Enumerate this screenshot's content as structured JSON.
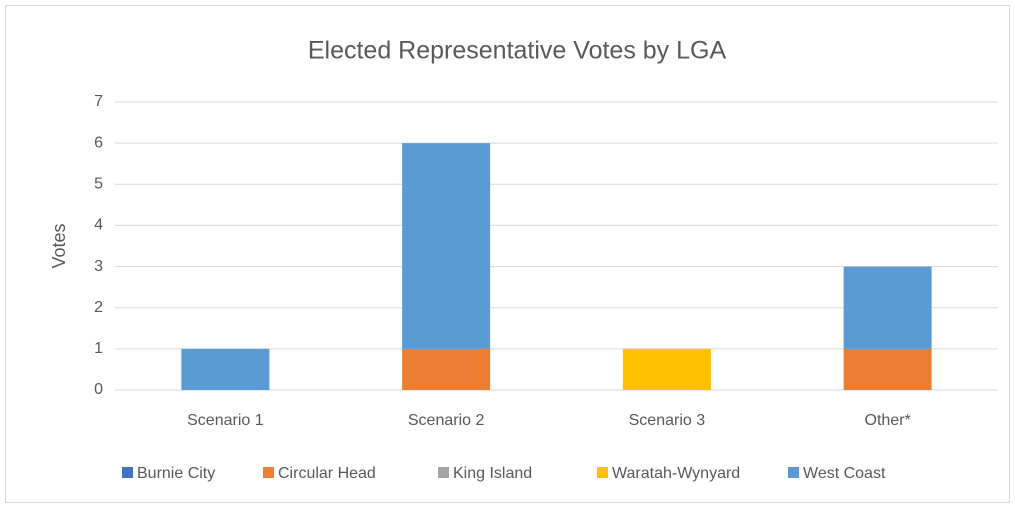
{
  "chart_data": {
    "type": "stacked_bar",
    "title": "Elected Representative Votes by LGA",
    "y_label": "Votes",
    "categories": [
      "Scenario 1",
      "Scenario 2",
      "Scenario 3",
      "Other*"
    ],
    "series": [
      {
        "name": "Burnie City",
        "color": "#4472c4",
        "values": [
          0,
          0,
          0,
          0
        ]
      },
      {
        "name": "Circular Head",
        "color": "#ed7d31",
        "values": [
          0,
          1,
          0,
          1
        ]
      },
      {
        "name": "King Island",
        "color": "#a5a5a5",
        "values": [
          0,
          0,
          0,
          0
        ]
      },
      {
        "name": "Waratah-Wynyard",
        "color": "#ffc000",
        "values": [
          0,
          0,
          1,
          0
        ]
      },
      {
        "name": "West Coast",
        "color": "#5b9bd5",
        "values": [
          1,
          5,
          0,
          2
        ]
      }
    ],
    "ylim": [
      0,
      7
    ],
    "yticks": [
      0,
      1,
      2,
      3,
      4,
      5,
      6,
      7
    ],
    "grid": true,
    "legend": "bottom"
  }
}
